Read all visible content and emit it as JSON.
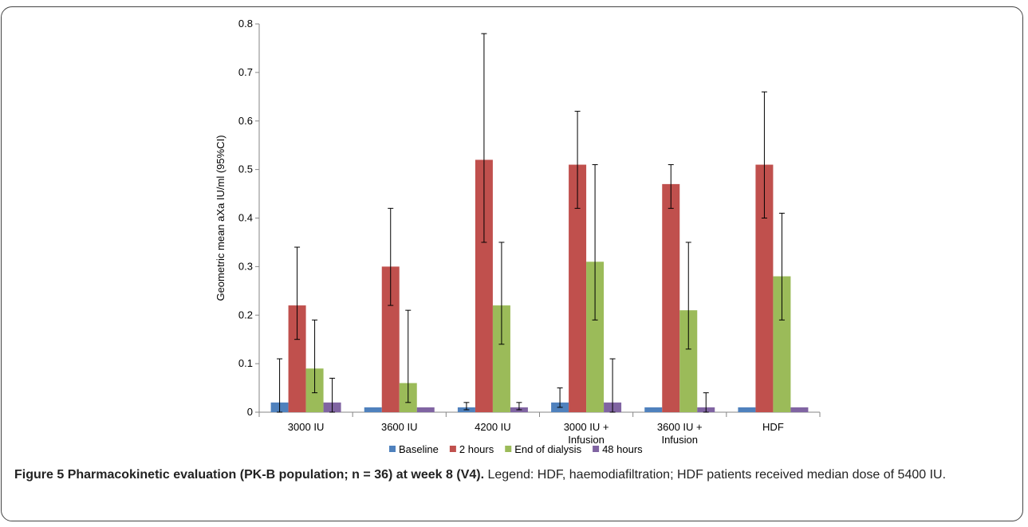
{
  "caption": {
    "label": "Figure 5",
    "title": "Pharmacokinetic evaluation (PK-B population; n = 36) at week 8 (V4).",
    "text": "Legend: HDF, haemodiafiltration; HDF patients received median dose of 5400 IU."
  },
  "chart_data": {
    "type": "bar",
    "title": "",
    "xlabel": "",
    "ylabel": "Geometric mean aXa IU/ml (95%CI)",
    "ylim": [
      0,
      0.8
    ],
    "yticks": [
      "0",
      "0.1",
      "0.2",
      "0.3",
      "0.4",
      "0.5",
      "0.6",
      "0.7",
      "0.8"
    ],
    "grid": false,
    "legend_position": "bottom",
    "categories": [
      [
        "3000 IU"
      ],
      [
        "3600 IU"
      ],
      [
        "4200 IU"
      ],
      [
        "3000 IU +",
        "Infusion"
      ],
      [
        "3600 IU +",
        "Infusion"
      ],
      [
        "HDF"
      ]
    ],
    "series": [
      {
        "name": "Baseline",
        "color": "#4f81bd",
        "values": [
          0.02,
          0.01,
          0.01,
          0.02,
          0.01,
          0.01
        ],
        "error_low": [
          0,
          null,
          0.005,
          0.01,
          null,
          null
        ],
        "error_high": [
          0.11,
          null,
          0.02,
          0.05,
          null,
          null
        ]
      },
      {
        "name": "2 hours",
        "color": "#c0504d",
        "values": [
          0.22,
          0.3,
          0.52,
          0.51,
          0.47,
          0.51
        ],
        "error_low": [
          0.15,
          0.22,
          0.35,
          0.42,
          0.42,
          0.4
        ],
        "error_high": [
          0.34,
          0.42,
          0.78,
          0.62,
          0.51,
          0.66
        ]
      },
      {
        "name": "End of dialysis",
        "color": "#9bbb59",
        "values": [
          0.09,
          0.06,
          0.22,
          0.31,
          0.21,
          0.28
        ],
        "error_low": [
          0.04,
          0.02,
          0.14,
          0.19,
          0.13,
          0.19
        ],
        "error_high": [
          0.19,
          0.21,
          0.35,
          0.51,
          0.35,
          0.41
        ]
      },
      {
        "name": "48 hours",
        "color": "#8064a2",
        "values": [
          0.02,
          0.01,
          0.01,
          0.02,
          0.01,
          0.01
        ],
        "error_low": [
          0,
          null,
          0.005,
          0,
          0,
          null
        ],
        "error_high": [
          0.07,
          null,
          0.02,
          0.11,
          0.04,
          null
        ]
      }
    ]
  }
}
